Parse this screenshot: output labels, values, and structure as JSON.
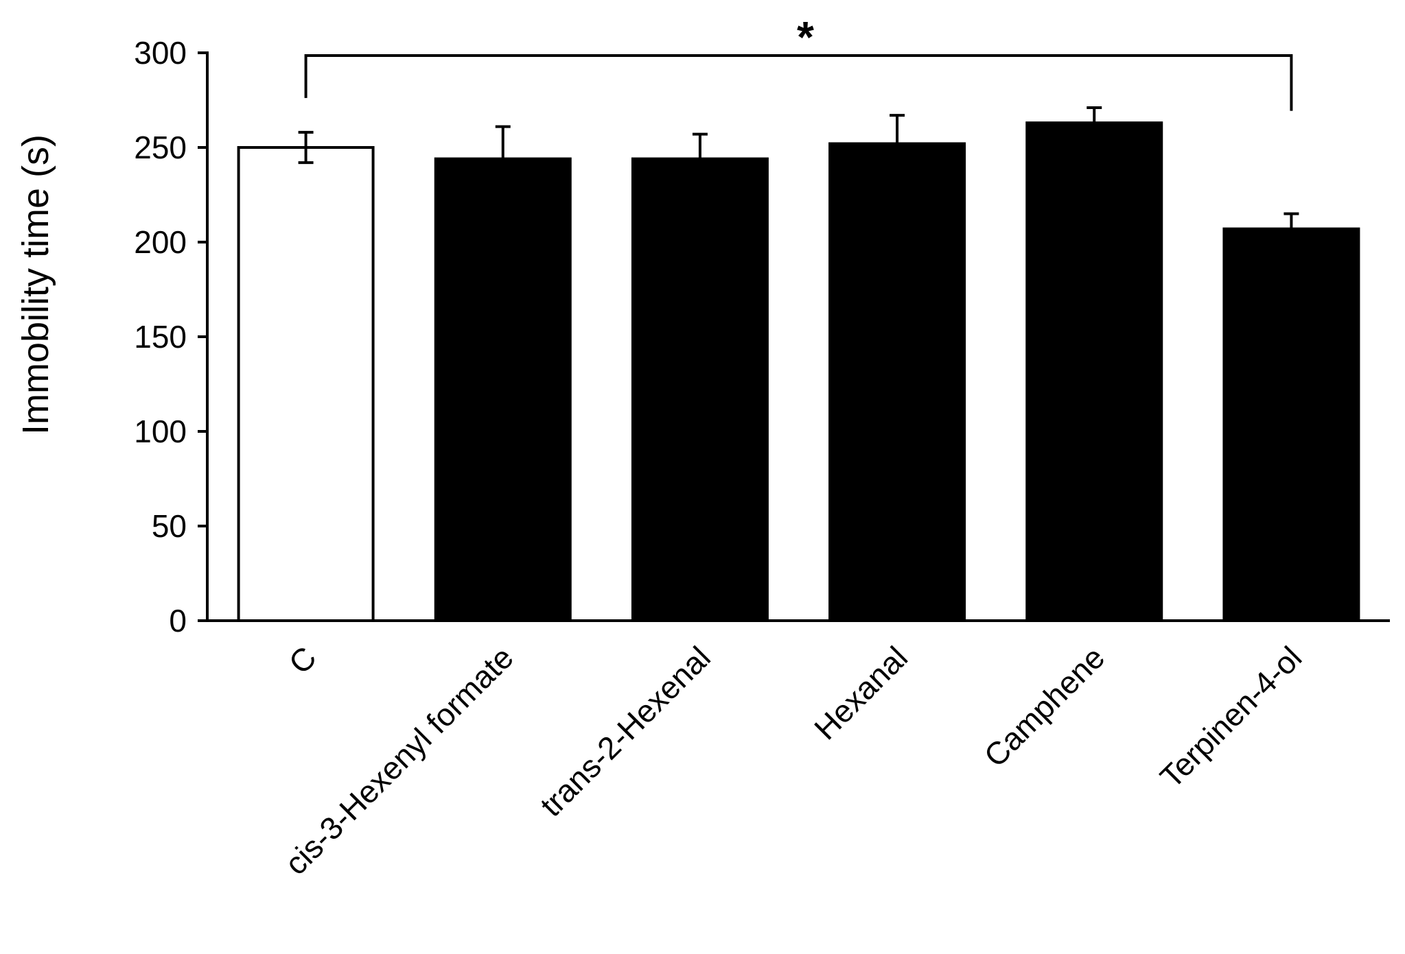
{
  "chart_data": {
    "type": "bar",
    "title": "",
    "xlabel": "",
    "ylabel": "Immobility time (s)",
    "ylim": [
      0,
      300
    ],
    "yticks": [
      0,
      50,
      100,
      150,
      200,
      250,
      300
    ],
    "grid": false,
    "legend": "none",
    "categories": [
      "C",
      "cis-3-Hexenyl formate",
      "trans-2-Hexenal",
      "Hexanal",
      "Camphene",
      "Terpinen-4-ol"
    ],
    "values": [
      250,
      244,
      244,
      252,
      263,
      207
    ],
    "errors": [
      8,
      17,
      13,
      15,
      8,
      8
    ],
    "bar_fill_colors": [
      "#ffffff",
      "#000000",
      "#000000",
      "#000000",
      "#000000",
      "#000000"
    ],
    "bar_edge_color": "#000000",
    "significance": [
      {
        "from": "C",
        "to": "Terpinen-4-ol",
        "label": "*"
      }
    ]
  }
}
